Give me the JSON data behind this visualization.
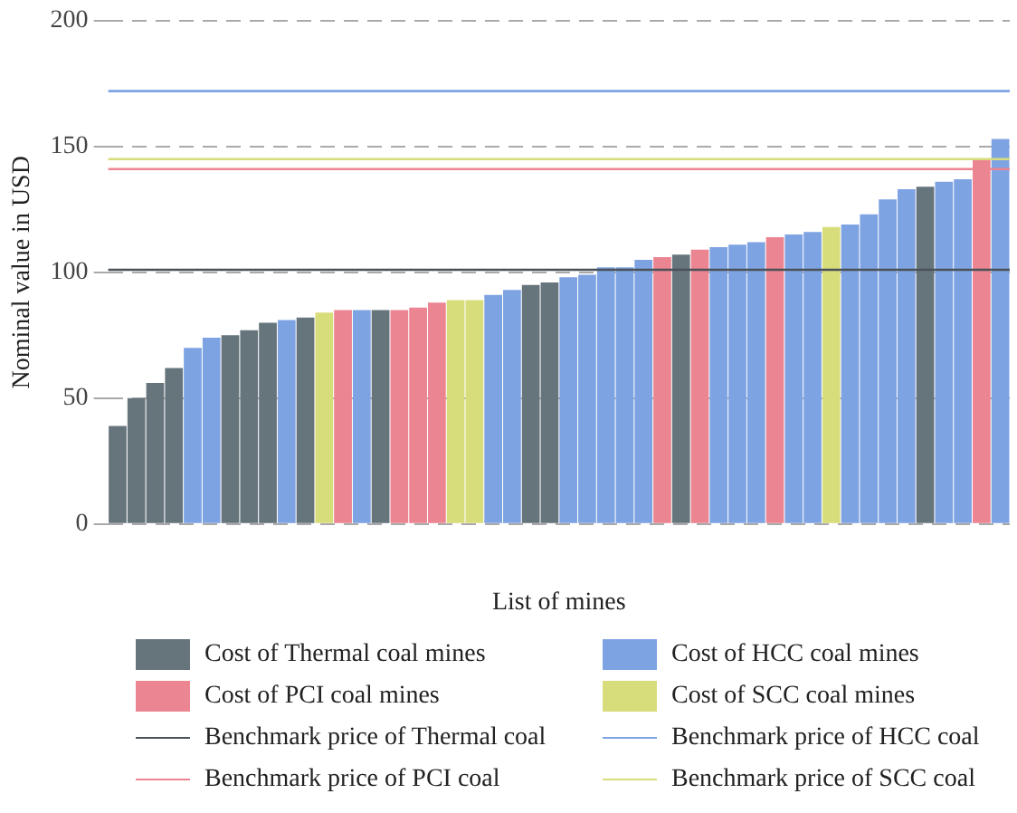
{
  "chart_data": {
    "type": "bar",
    "xlabel": "List of mines",
    "ylabel": "Nominal value in USD",
    "categories": [
      null,
      null,
      null,
      null,
      null,
      null,
      null,
      null,
      null,
      null,
      null,
      null,
      null,
      null,
      null,
      null,
      null,
      null,
      null,
      null,
      null,
      null,
      null,
      null,
      null,
      null,
      null,
      null,
      null,
      null,
      null,
      null,
      null,
      null,
      null,
      null,
      null,
      null,
      null,
      null,
      null,
      null,
      null,
      null,
      null,
      null,
      null,
      null
    ],
    "series": [
      {
        "name": "Cost of Thermal coal mines",
        "color": "#66757c",
        "values": [
          39,
          50,
          56,
          62,
          null,
          null,
          75,
          77,
          80,
          null,
          82,
          null,
          null,
          null,
          85,
          null,
          null,
          null,
          null,
          null,
          null,
          null,
          95,
          96,
          null,
          null,
          null,
          null,
          null,
          null,
          107,
          null,
          null,
          null,
          null,
          null,
          null,
          null,
          null,
          null,
          null,
          null,
          null,
          134,
          null,
          null,
          null,
          null
        ]
      },
      {
        "name": "Cost of HCC coal mines",
        "color": "#7ea3e3",
        "values": [
          null,
          null,
          null,
          null,
          70,
          74,
          null,
          null,
          null,
          81,
          null,
          null,
          null,
          85,
          null,
          null,
          null,
          null,
          null,
          null,
          91,
          93,
          null,
          null,
          98,
          99,
          102,
          102,
          105,
          null,
          null,
          null,
          110,
          111,
          112,
          null,
          115,
          116,
          null,
          119,
          123,
          129,
          133,
          null,
          136,
          137,
          null,
          153
        ]
      },
      {
        "name": "Cost of PCI coal mines",
        "color": "#ec8592",
        "values": [
          null,
          null,
          null,
          null,
          null,
          null,
          null,
          null,
          null,
          null,
          null,
          null,
          85,
          null,
          null,
          85,
          86,
          88,
          null,
          null,
          null,
          null,
          null,
          null,
          null,
          null,
          null,
          null,
          null,
          106,
          null,
          109,
          null,
          null,
          null,
          114,
          null,
          null,
          null,
          null,
          null,
          null,
          null,
          null,
          null,
          null,
          145,
          null
        ]
      },
      {
        "name": "Cost of SCC coal mines",
        "color": "#d8dd7c",
        "values": [
          null,
          null,
          null,
          null,
          null,
          null,
          null,
          null,
          null,
          null,
          null,
          84,
          null,
          null,
          null,
          null,
          null,
          null,
          89,
          89,
          null,
          null,
          null,
          null,
          null,
          null,
          null,
          null,
          null,
          null,
          null,
          null,
          null,
          null,
          null,
          null,
          null,
          null,
          118,
          null,
          null,
          null,
          null,
          null,
          null,
          null,
          null,
          null
        ]
      }
    ],
    "ref_lines": [
      {
        "axis": "y",
        "value": 101,
        "label": "Benchmark price of Thermal coal",
        "color": "#4a5258"
      },
      {
        "axis": "y",
        "value": 172,
        "label": "Benchmark price of HCC coal",
        "color": "#7ea3e3"
      },
      {
        "axis": "y",
        "value": 141,
        "label": "Benchmark price of PCI coal",
        "color": "#ec8592"
      },
      {
        "axis": "y",
        "value": 145,
        "label": "Benchmark price of SCC coal",
        "color": "#d8dd7c"
      }
    ],
    "ylim": [
      0,
      200
    ],
    "yticks": [
      0,
      50,
      100,
      150,
      200
    ],
    "grid": "y",
    "legend": "bottom"
  }
}
